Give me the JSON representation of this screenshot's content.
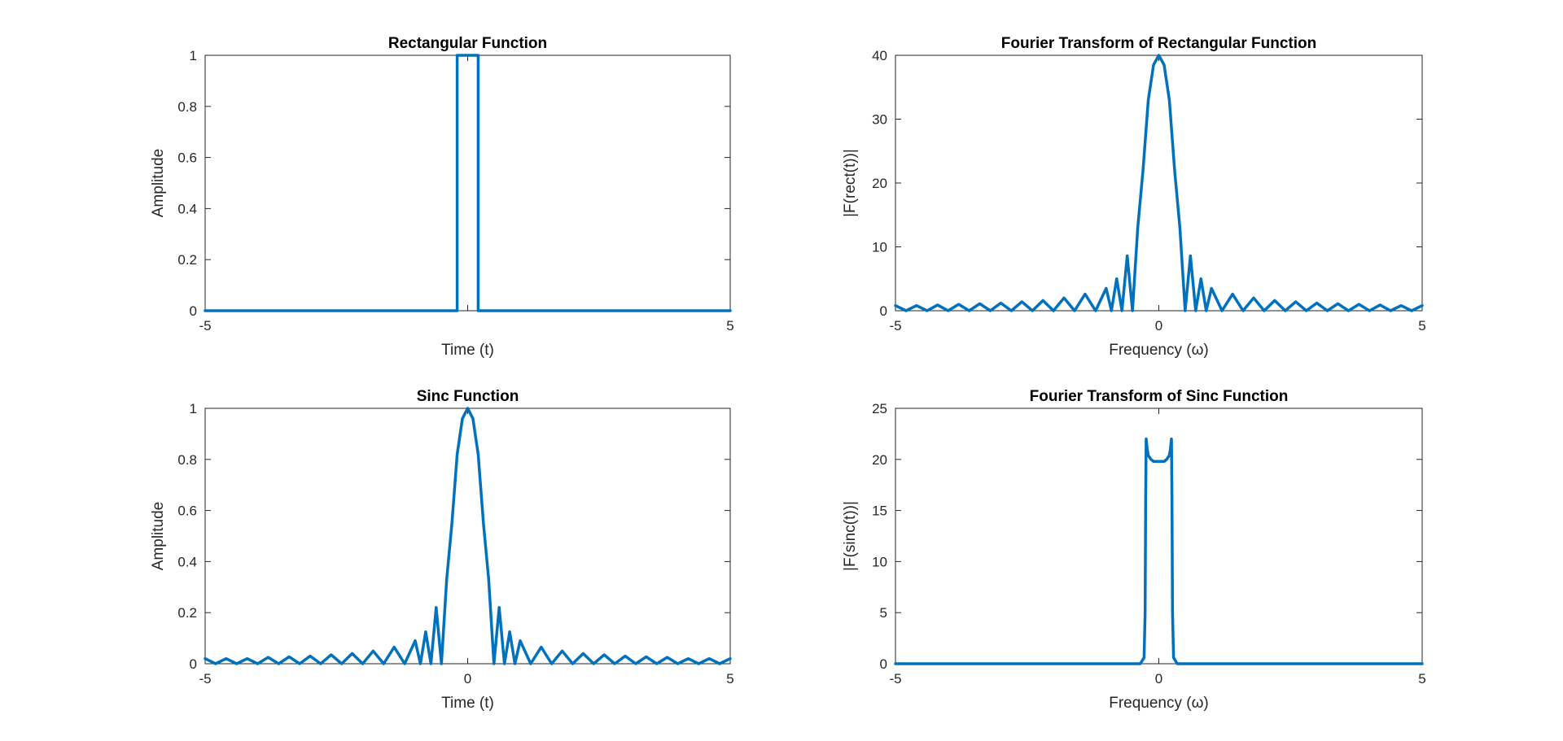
{
  "chart_data": [
    {
      "type": "line",
      "title": "Rectangular Function",
      "xlabel": "Time (t)",
      "ylabel": "Amplitude",
      "xlim": [
        -5,
        5
      ],
      "ylim": [
        0,
        1
      ],
      "xticks": [
        -5,
        0,
        5
      ],
      "xtick_labels": [
        "-5",
        "",
        "5"
      ],
      "yticks": [
        0,
        0.2,
        0.4,
        0.6,
        0.8,
        1
      ],
      "ytick_labels": [
        "0",
        "0.2",
        "0.4",
        "0.6",
        "0.8",
        "1"
      ],
      "grid": false,
      "color": "#0072BD",
      "series": [
        {
          "x": [
            -5,
            -0.2,
            -0.2,
            0.2,
            0.2,
            5
          ],
          "y": [
            0,
            0,
            1,
            1,
            0,
            0
          ]
        }
      ]
    },
    {
      "type": "line",
      "title": "Fourier Transform of Rectangular Function",
      "xlabel": "Frequency (ω)",
      "ylabel": "|F(rect(t))|",
      "xlim": [
        -5,
        5
      ],
      "ylim": [
        0,
        40
      ],
      "xticks": [
        -5,
        0,
        5
      ],
      "xtick_labels": [
        "-5",
        "0",
        "5"
      ],
      "yticks": [
        0,
        10,
        20,
        30,
        40
      ],
      "ytick_labels": [
        "0",
        "10",
        "20",
        "30",
        "40"
      ],
      "grid": false,
      "color": "#0072BD",
      "series": [
        {
          "x": [
            -5,
            -4.8,
            -4.6,
            -4.4,
            -4.2,
            -4,
            -3.8,
            -3.6,
            -3.4,
            -3.2,
            -3,
            -2.8,
            -2.6,
            -2.4,
            -2.2,
            -2,
            -1.8,
            -1.6,
            -1.4,
            -1.2,
            -1,
            -0.9,
            -0.8,
            -0.7,
            -0.6,
            -0.5,
            -0.4,
            -0.3,
            -0.2,
            -0.1,
            0,
            0.1,
            0.2,
            0.3,
            0.4,
            0.5,
            0.6,
            0.7,
            0.8,
            0.9,
            1,
            1.2,
            1.4,
            1.6,
            1.8,
            2,
            2.2,
            2.4,
            2.6,
            2.8,
            3,
            3.2,
            3.4,
            3.6,
            3.8,
            4,
            4.2,
            4.4,
            4.6,
            4.8,
            5
          ],
          "y": [
            0.8,
            0.0,
            0.8,
            0.0,
            0.9,
            0.0,
            1.0,
            0.0,
            1.1,
            0.0,
            1.2,
            0.0,
            1.4,
            0.0,
            1.6,
            0.0,
            2.0,
            0.0,
            2.6,
            0.0,
            3.5,
            0.0,
            5.0,
            0.0,
            8.6,
            0.0,
            13.0,
            22.0,
            33.0,
            38.5,
            40.0,
            38.5,
            33.0,
            22.0,
            13.0,
            0.0,
            8.6,
            0.0,
            5.0,
            0.0,
            3.5,
            0.0,
            2.6,
            0.0,
            2.0,
            0.0,
            1.6,
            0.0,
            1.4,
            0.0,
            1.2,
            0.0,
            1.1,
            0.0,
            1.0,
            0.0,
            0.9,
            0.0,
            0.8,
            0.0,
            0.8
          ]
        }
      ]
    },
    {
      "type": "line",
      "title": "Sinc Function",
      "xlabel": "Time (t)",
      "ylabel": "Amplitude",
      "xlim": [
        -5,
        5
      ],
      "ylim": [
        0,
        1
      ],
      "xticks": [
        -5,
        0,
        5
      ],
      "xtick_labels": [
        "-5",
        "0",
        "5"
      ],
      "yticks": [
        0,
        0.2,
        0.4,
        0.6,
        0.8,
        1
      ],
      "ytick_labels": [
        "0",
        "0.2",
        "0.4",
        "0.6",
        "0.8",
        "1"
      ],
      "grid": false,
      "color": "#0072BD",
      "series": [
        {
          "x": [
            -5,
            -4.8,
            -4.6,
            -4.4,
            -4.2,
            -4,
            -3.8,
            -3.6,
            -3.4,
            -3.2,
            -3,
            -2.8,
            -2.6,
            -2.4,
            -2.2,
            -2,
            -1.8,
            -1.6,
            -1.4,
            -1.2,
            -1,
            -0.9,
            -0.8,
            -0.7,
            -0.6,
            -0.5,
            -0.4,
            -0.3,
            -0.2,
            -0.1,
            0,
            0.1,
            0.2,
            0.3,
            0.4,
            0.5,
            0.6,
            0.7,
            0.8,
            0.9,
            1,
            1.2,
            1.4,
            1.6,
            1.8,
            2,
            2.2,
            2.4,
            2.6,
            2.8,
            3,
            3.2,
            3.4,
            3.6,
            3.8,
            4,
            4.2,
            4.4,
            4.6,
            4.8,
            5
          ],
          "y": [
            0.02,
            0.0,
            0.02,
            0.0,
            0.02,
            0.0,
            0.025,
            0.0,
            0.027,
            0.0,
            0.03,
            0.0,
            0.035,
            0.0,
            0.04,
            0.0,
            0.05,
            0.0,
            0.065,
            0.0,
            0.09,
            0.0,
            0.125,
            0.0,
            0.22,
            0.0,
            0.33,
            0.55,
            0.82,
            0.96,
            1.0,
            0.96,
            0.82,
            0.55,
            0.33,
            0.0,
            0.22,
            0.0,
            0.125,
            0.0,
            0.09,
            0.0,
            0.065,
            0.0,
            0.05,
            0.0,
            0.04,
            0.0,
            0.035,
            0.0,
            0.03,
            0.0,
            0.027,
            0.0,
            0.025,
            0.0,
            0.02,
            0.0,
            0.02,
            0.0,
            0.02
          ]
        }
      ]
    },
    {
      "type": "line",
      "title": "Fourier Transform of Sinc Function",
      "xlabel": "Frequency (ω)",
      "ylabel": "|F(sinc(t))|",
      "xlim": [
        -5,
        5
      ],
      "ylim": [
        0,
        25
      ],
      "xticks": [
        -5,
        0,
        5
      ],
      "xtick_labels": [
        "-5",
        "0",
        "5"
      ],
      "yticks": [
        0,
        5,
        10,
        15,
        20,
        25
      ],
      "ytick_labels": [
        "0",
        "5",
        "10",
        "15",
        "20",
        "25"
      ],
      "grid": false,
      "color": "#0072BD",
      "series": [
        {
          "x": [
            -5,
            -0.35,
            -0.28,
            -0.26,
            -0.25,
            -0.24,
            -0.22,
            -0.2,
            -0.15,
            -0.1,
            -0.05,
            0,
            0.05,
            0.1,
            0.15,
            0.2,
            0.22,
            0.24,
            0.25,
            0.26,
            0.28,
            0.35,
            5
          ],
          "y": [
            0,
            0,
            0.6,
            5,
            16,
            22,
            21,
            20.4,
            20,
            19.8,
            19.8,
            19.8,
            19.8,
            19.8,
            20,
            20.4,
            21,
            22,
            16,
            5,
            0.6,
            0,
            0
          ]
        }
      ]
    }
  ]
}
